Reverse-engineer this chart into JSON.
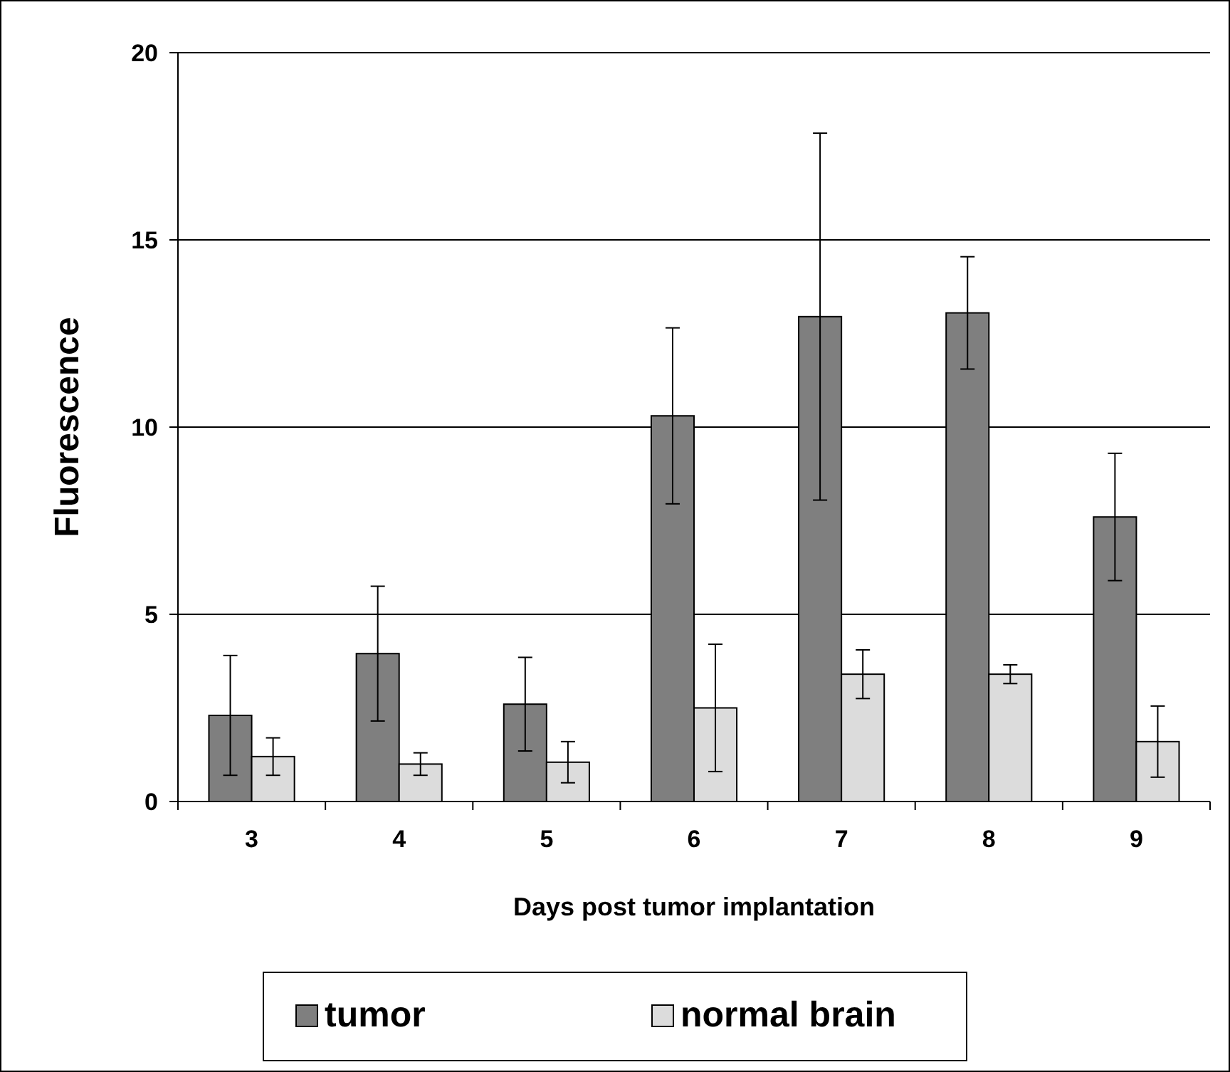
{
  "chart_data": {
    "type": "bar",
    "xlabel": "Days post tumor implantation",
    "ylabel": "Fluorescence",
    "categories": [
      "3",
      "4",
      "5",
      "6",
      "7",
      "8",
      "9"
    ],
    "series": [
      {
        "name": "tumor",
        "color": "#7f7f7f",
        "values": [
          2.3,
          3.95,
          2.6,
          10.3,
          12.95,
          13.05,
          7.6
        ],
        "errors": [
          1.6,
          1.8,
          1.25,
          2.35,
          4.9,
          1.5,
          1.7
        ]
      },
      {
        "name": "normal brain",
        "color": "#dcdcdc",
        "values": [
          1.2,
          1.0,
          1.05,
          2.5,
          3.4,
          3.4,
          1.6
        ],
        "errors": [
          0.5,
          0.3,
          0.55,
          1.7,
          0.65,
          0.25,
          0.95
        ]
      }
    ],
    "ylim": [
      0,
      20
    ],
    "yticks": [
      0,
      5,
      10,
      15,
      20
    ],
    "grid": "y",
    "legend": "bottom"
  }
}
